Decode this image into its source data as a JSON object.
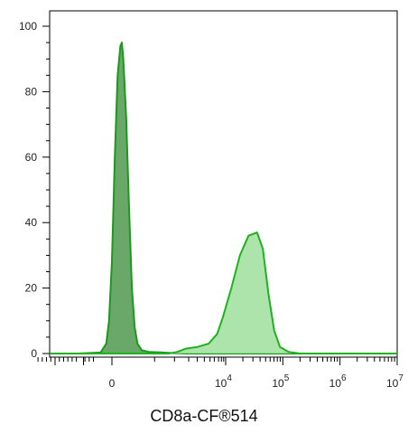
{
  "chart_data": {
    "type": "area",
    "xlabel": "CD8a-CF®514",
    "ylabel": "",
    "x_scale": "biexponential",
    "ylim": [
      0,
      105
    ],
    "y_ticks": [
      0,
      20,
      40,
      60,
      80,
      100
    ],
    "x_tick_labels": [
      {
        "pos": 0,
        "text": "0"
      },
      {
        "pos": 4,
        "base": "10",
        "exp": "4"
      },
      {
        "pos": 5,
        "base": "10",
        "exp": "5"
      },
      {
        "pos": 6,
        "base": "10",
        "exp": "6"
      },
      {
        "pos": 7,
        "base": "10",
        "exp": "7"
      }
    ],
    "grid": false,
    "legend": "none",
    "series": [
      {
        "color_fill": "#6aa86a",
        "color_line": "#1a9a1a",
        "points": [
          [
            -2.7,
            0
          ],
          [
            -1.2,
            0
          ],
          [
            -0.4,
            0.3
          ],
          [
            -0.2,
            3
          ],
          [
            -0.1,
            10
          ],
          [
            0.0,
            28
          ],
          [
            0.1,
            60
          ],
          [
            0.2,
            85
          ],
          [
            0.3,
            94
          ],
          [
            0.35,
            95
          ],
          [
            0.4,
            90
          ],
          [
            0.5,
            72
          ],
          [
            0.6,
            45
          ],
          [
            0.7,
            20
          ],
          [
            0.8,
            8
          ],
          [
            0.9,
            3
          ],
          [
            1.05,
            1
          ],
          [
            1.3,
            0.5
          ],
          [
            1.8,
            0.3
          ],
          [
            2.2,
            0.1
          ],
          [
            2.6,
            0
          ],
          [
            7.2,
            0
          ]
        ]
      },
      {
        "color_fill": "#9ddf9d",
        "color_line": "#1fb21f",
        "points": [
          [
            -2.7,
            0
          ],
          [
            2.0,
            0
          ],
          [
            2.3,
            0.5
          ],
          [
            2.6,
            1.5
          ],
          [
            3.0,
            2
          ],
          [
            3.4,
            3
          ],
          [
            3.7,
            6
          ],
          [
            3.9,
            11
          ],
          [
            4.1,
            20
          ],
          [
            4.25,
            30
          ],
          [
            4.4,
            36
          ],
          [
            4.55,
            37
          ],
          [
            4.65,
            32
          ],
          [
            4.75,
            18
          ],
          [
            4.85,
            7
          ],
          [
            4.95,
            2
          ],
          [
            5.1,
            0.5
          ],
          [
            5.3,
            0
          ],
          [
            7.2,
            0
          ]
        ]
      }
    ]
  }
}
